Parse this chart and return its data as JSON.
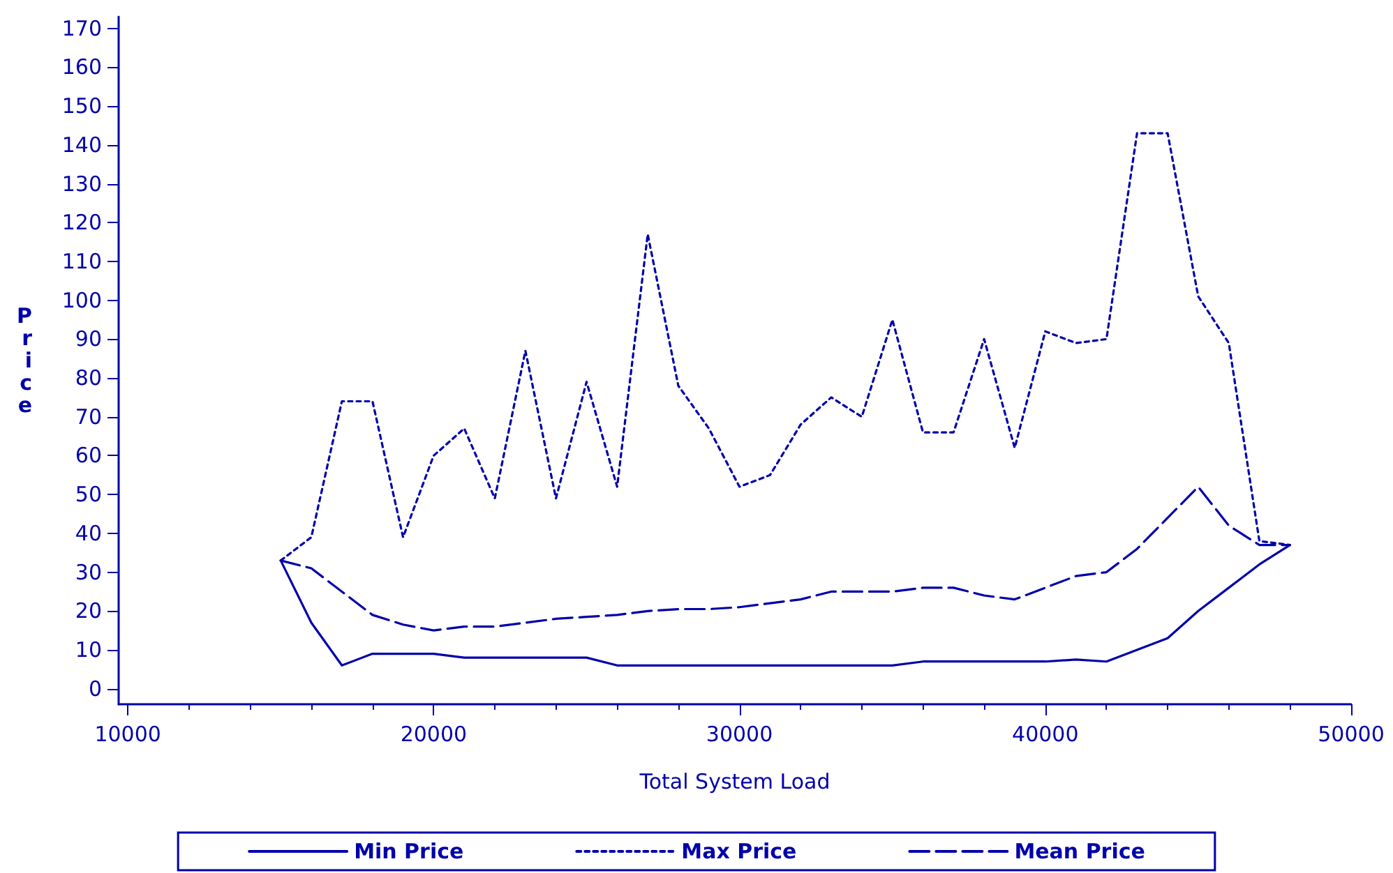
{
  "chart_data": {
    "type": "line",
    "xlabel": "Total System Load",
    "ylabel": "Price",
    "x": [
      15000,
      16000,
      17000,
      18000,
      19000,
      20000,
      21000,
      22000,
      23000,
      24000,
      25000,
      26000,
      27000,
      28000,
      29000,
      30000,
      31000,
      32000,
      33000,
      34000,
      35000,
      36000,
      37000,
      38000,
      39000,
      40000,
      41000,
      42000,
      43000,
      44000,
      45000,
      46000,
      47000,
      48000
    ],
    "series": [
      {
        "name": "Min Price",
        "color": "#0000aa",
        "line_style": "solid",
        "values": [
          33,
          17,
          6,
          9,
          9,
          9,
          8,
          8,
          8,
          8,
          8,
          6,
          6,
          6,
          6,
          6,
          6,
          6,
          6,
          6,
          6,
          7,
          7,
          7,
          7,
          7,
          7.5,
          7,
          10,
          13,
          20,
          26,
          32,
          37
        ]
      },
      {
        "name": "Max Price",
        "color": "#0000aa",
        "line_style": "dotted",
        "values": [
          33,
          39,
          74,
          74,
          39,
          60,
          67,
          49,
          87,
          49,
          79,
          52,
          117,
          78,
          67,
          52,
          55,
          68,
          75,
          70,
          95,
          66,
          66,
          90,
          62,
          92,
          89,
          90,
          143,
          143,
          101,
          89,
          38,
          37
        ]
      },
      {
        "name": "Mean Price",
        "color": "#0000aa",
        "line_style": "dashed",
        "values": [
          33,
          31,
          25,
          19,
          16.5,
          15,
          16,
          16,
          17,
          18,
          18.5,
          19,
          20,
          20.5,
          20.5,
          21,
          22,
          23,
          25,
          25,
          25,
          26,
          26,
          24,
          23,
          26,
          29,
          30,
          36,
          44,
          52,
          42,
          37,
          37
        ]
      }
    ],
    "xlim": [
      9700,
      50000
    ],
    "xticks": [
      10000,
      20000,
      30000,
      40000,
      50000
    ],
    "ylim": [
      -4,
      173
    ],
    "yticks": [
      0,
      10,
      20,
      30,
      40,
      50,
      60,
      70,
      80,
      90,
      100,
      110,
      120,
      130,
      140,
      150,
      160,
      170
    ],
    "grid": false,
    "legend": "bottom",
    "marker": "none"
  }
}
